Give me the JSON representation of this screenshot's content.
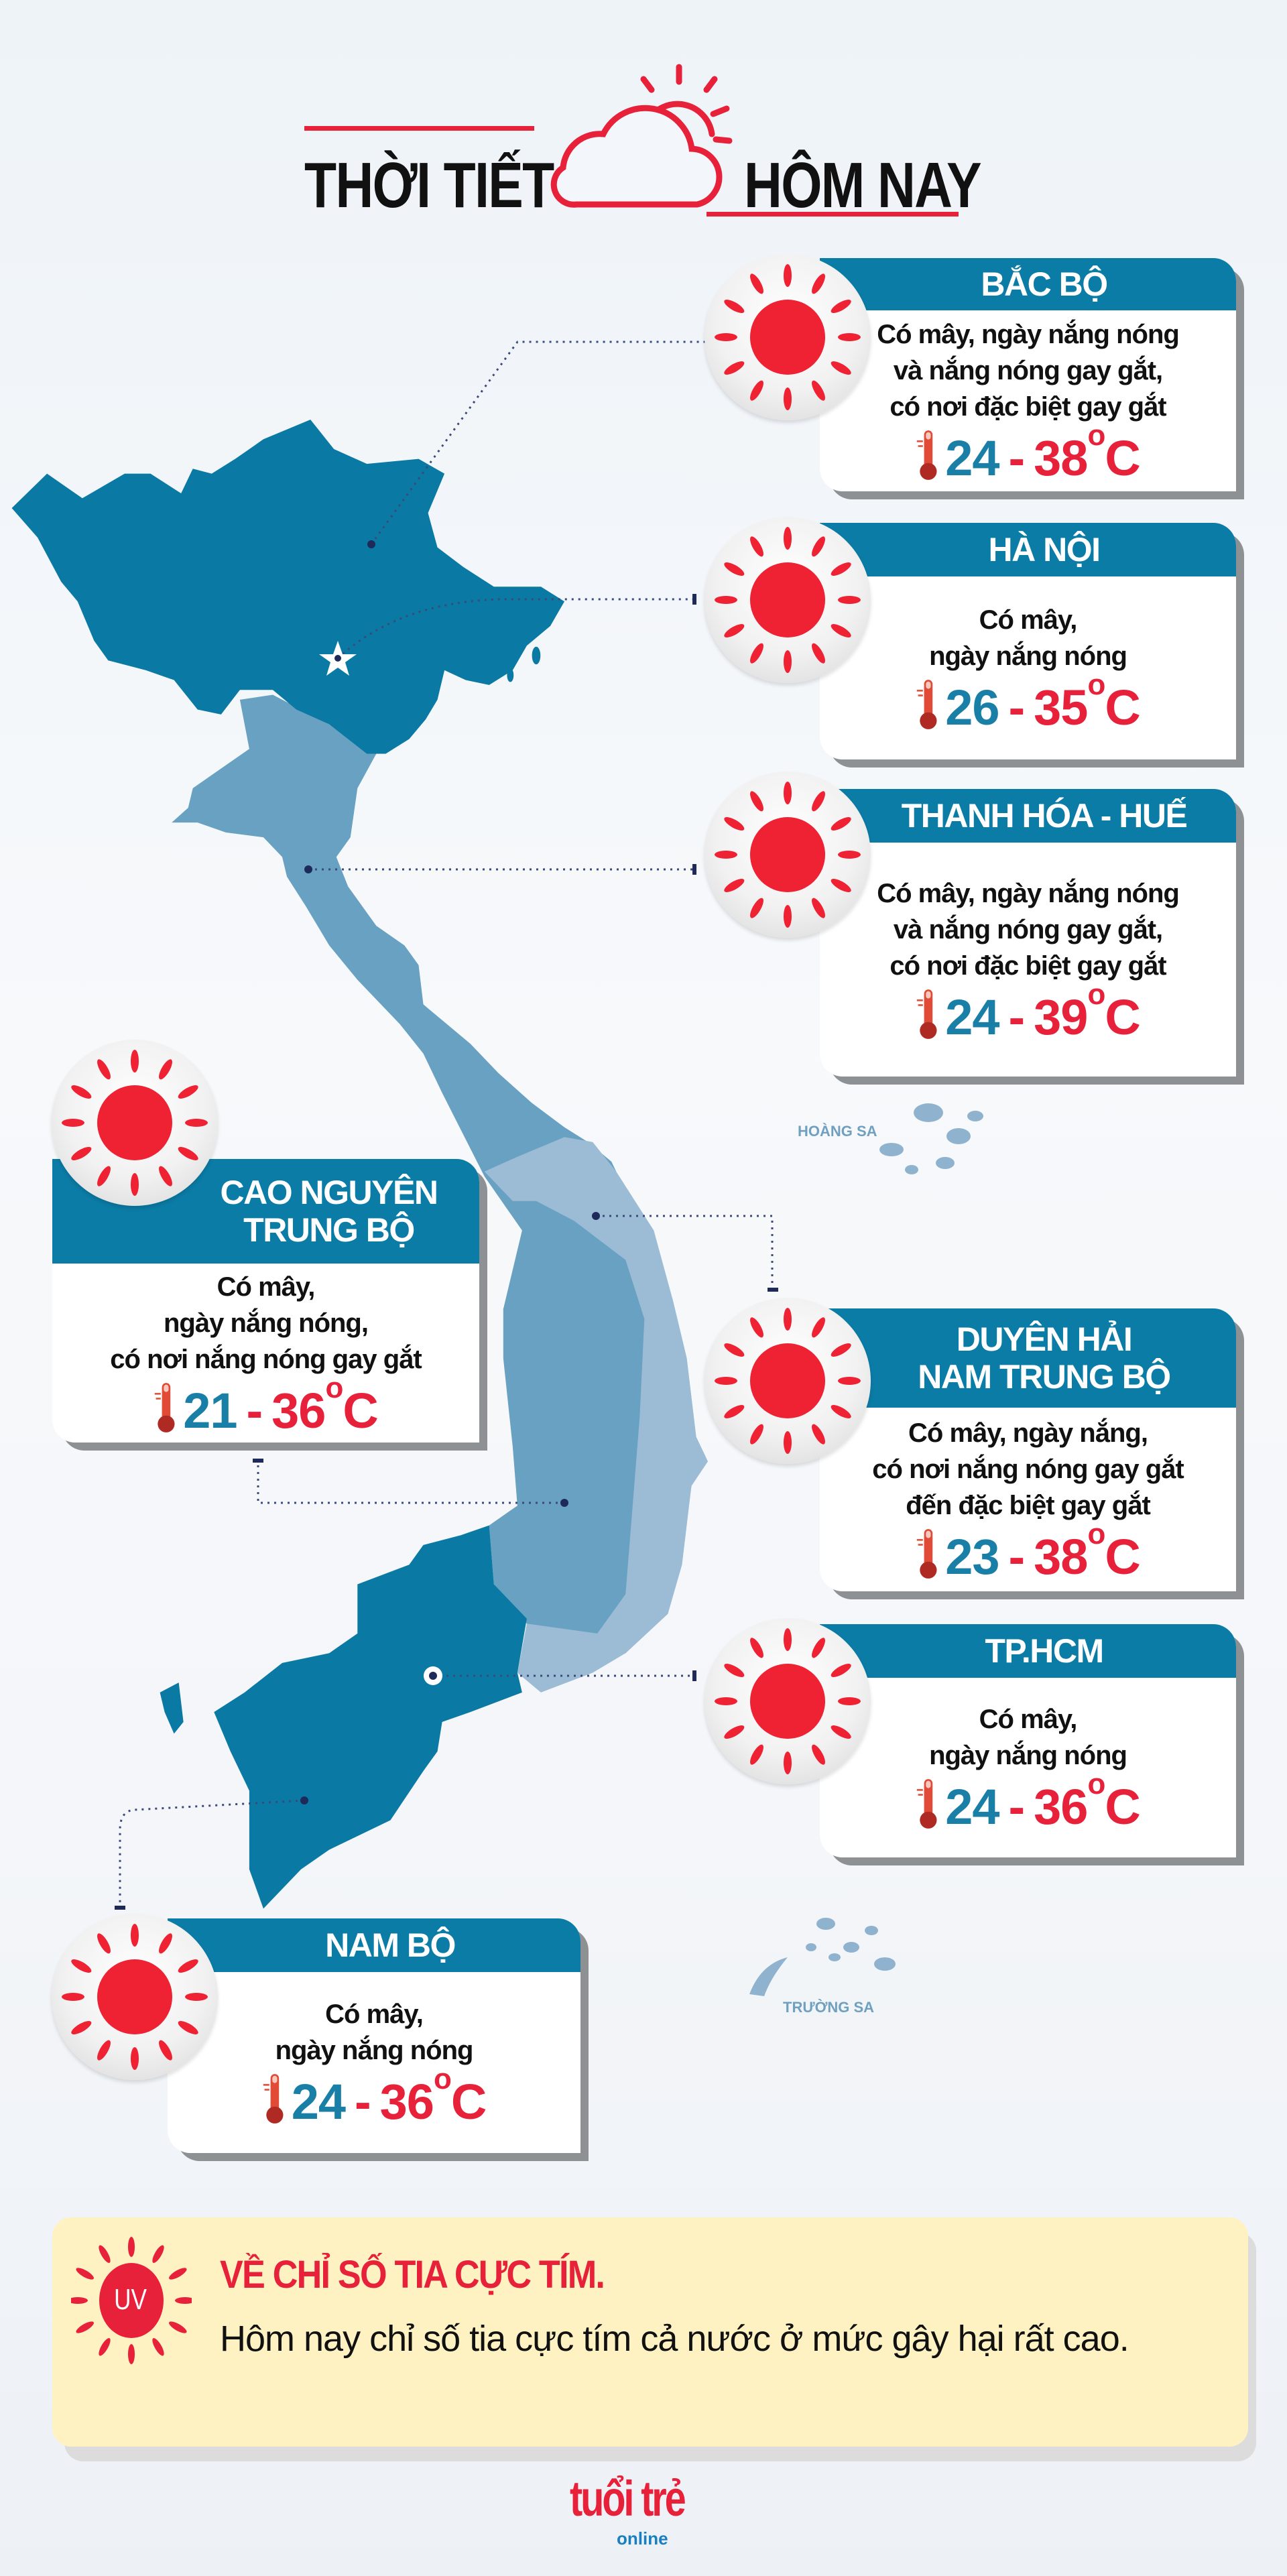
{
  "header": {
    "title_left": "THỜI TIẾT",
    "title_right": "HÔM NAY",
    "icon": "cloud-sun-icon"
  },
  "colors": {
    "header_band": "#0b7ca6",
    "temp_min": "#1a7fa6",
    "temp_max": "#e8213a",
    "sun": "#ee2233",
    "map_dark": "#0a79a3",
    "map_mid": "#68a1c2",
    "map_light": "#9cbcd6",
    "uv_bg": "#fff2c2"
  },
  "map": {
    "labels": {
      "hoang_sa": "HOÀNG SA",
      "truong_sa": "TRƯỜNG SA"
    }
  },
  "regions": [
    {
      "name": "BẮC BỘ",
      "icon": "sun-icon",
      "description": "Có mây, ngày nắng nóng\nvà nắng nóng gay gắt,\ncó nơi đặc biệt gay gắt",
      "temp_min": "24",
      "temp_max": "38",
      "unit": "C"
    },
    {
      "name": "HÀ NỘI",
      "icon": "sun-icon",
      "description": "Có mây,\nngày nắng nóng",
      "temp_min": "26",
      "temp_max": "35",
      "unit": "C"
    },
    {
      "name": "THANH HÓA - HUẾ",
      "icon": "sun-icon",
      "description": "Có mây, ngày nắng nóng\nvà nắng nóng gay gắt,\ncó nơi đặc biệt gay gắt",
      "temp_min": "24",
      "temp_max": "39",
      "unit": "C"
    },
    {
      "name": "CAO NGUYÊN\nTRUNG BỘ",
      "icon": "sun-icon",
      "description": "Có mây,\nngày nắng nóng,\ncó nơi nắng nóng gay gắt",
      "temp_min": "21",
      "temp_max": "36",
      "unit": "C"
    },
    {
      "name": "DUYÊN HẢI\nNAM TRUNG BỘ",
      "icon": "sun-icon",
      "description": "Có mây, ngày nắng,\ncó nơi nắng nóng gay gắt\nđến đặc biệt gay gắt",
      "temp_min": "23",
      "temp_max": "38",
      "unit": "C"
    },
    {
      "name": "TP.HCM",
      "icon": "sun-icon",
      "description": "Có mây,\nngày nắng nóng",
      "temp_min": "24",
      "temp_max": "36",
      "unit": "C"
    },
    {
      "name": "NAM BỘ",
      "icon": "sun-icon",
      "description": "Có mây,\nngày nắng nóng",
      "temp_min": "24",
      "temp_max": "36",
      "unit": "C"
    }
  ],
  "temp_separator": "-",
  "degree_symbol": "o",
  "uv": {
    "badge": "UV",
    "title": "VỀ CHỈ SỐ TIA CỰC TÍM.",
    "text": "Hôm nay chỉ số tia cực tím cả nước ở mức gây hại rất cao."
  },
  "footer": {
    "logo_text": "tuổi trẻ",
    "logo_sub": "online"
  }
}
